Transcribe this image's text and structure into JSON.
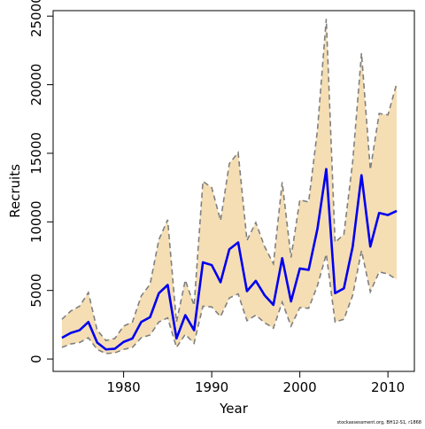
{
  "chart_data": {
    "type": "line",
    "title": "",
    "xlabel": "Year",
    "ylabel": "Recruits",
    "xlim": [
      1972,
      2013
    ],
    "ylim": [
      -900,
      25400
    ],
    "x_ticks": [
      1980,
      1990,
      2000,
      2010
    ],
    "y_ticks": [
      0,
      5000,
      10000,
      15000,
      20000,
      25000
    ],
    "grid": false,
    "legend": "none",
    "colors": {
      "estimate": "#0000ee",
      "interval_fill": "#f5deb3",
      "interval_edge": "#808080"
    },
    "x": [
      1973,
      1974,
      1975,
      1976,
      1977,
      1978,
      1979,
      1980,
      1981,
      1982,
      1983,
      1984,
      1985,
      1986,
      1987,
      1988,
      1989,
      1990,
      1991,
      1992,
      1993,
      1994,
      1995,
      1996,
      1997,
      1998,
      1999,
      2000,
      2001,
      2002,
      2003,
      2004,
      2005,
      2006,
      2007,
      2008,
      2009,
      2010,
      2011
    ],
    "series": [
      {
        "values": [
          1550,
          1900,
          2100,
          2700,
          1200,
          700,
          750,
          1250,
          1500,
          2700,
          3050,
          4800,
          5400,
          1500,
          3200,
          2100,
          7050,
          6850,
          5600,
          8000,
          8500,
          4950,
          5700,
          4650,
          3950,
          7350,
          4200,
          6600,
          6500,
          9500,
          13850,
          4800,
          5150,
          8200,
          13400,
          8200,
          10650,
          10500,
          10800
        ]
      },
      {
        "role": "upper",
        "values": [
          2900,
          3500,
          3850,
          4850,
          2100,
          1350,
          1500,
          2400,
          2700,
          4600,
          5450,
          8700,
          10150,
          2700,
          5750,
          3900,
          12950,
          12500,
          10100,
          14250,
          15050,
          8650,
          9950,
          8200,
          6950,
          12900,
          7400,
          11600,
          11450,
          16700,
          24800,
          8500,
          9100,
          14400,
          22300,
          13800,
          17900,
          17800,
          20100
        ]
      },
      {
        "role": "lower",
        "values": [
          850,
          1100,
          1200,
          1550,
          700,
          400,
          450,
          700,
          850,
          1550,
          1750,
          2700,
          3000,
          850,
          1800,
          1150,
          3850,
          3800,
          3100,
          4450,
          4750,
          2800,
          3200,
          2650,
          2250,
          4150,
          2400,
          3750,
          3700,
          5350,
          7650,
          2700,
          2900,
          4650,
          7900,
          4900,
          6350,
          6200,
          5800
        ]
      }
    ],
    "footnote": "stockassessment.org, BH12-S1, r1868"
  }
}
